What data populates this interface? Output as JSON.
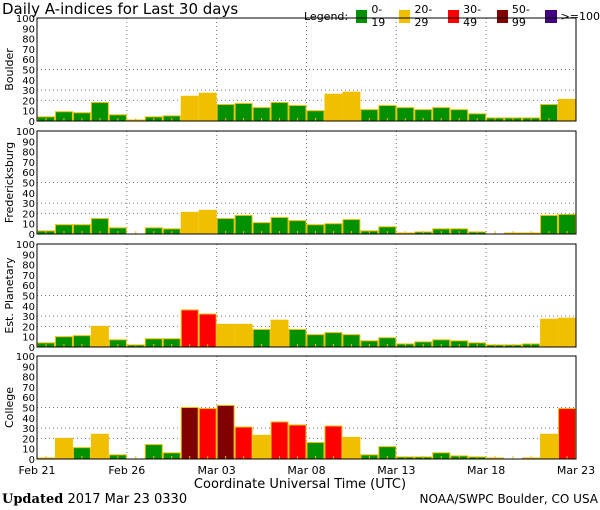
{
  "title": "Daily A-indices for Last 30 days",
  "legend": {
    "label": "Legend:",
    "items": [
      {
        "label": "0-19",
        "color": "#009000"
      },
      {
        "label": "20-29",
        "color": "#f0c000"
      },
      {
        "label": "30-49",
        "color": "#ff0000"
      },
      {
        "label": "50-99",
        "color": "#800000"
      },
      {
        "label": ">=100",
        "color": "#400080"
      }
    ]
  },
  "footer": {
    "updated_label": "Updated",
    "updated_value": "2017 Mar 23 0330",
    "source": "NOAA/SWPC Boulder, CO USA"
  },
  "chart_data": {
    "type": "bar",
    "xlabel": "Coordinate Universal Time (UTC)",
    "x_tick_labels": [
      "Feb 21",
      "Feb 26",
      "Mar 03",
      "Mar 08",
      "Mar 13",
      "Mar 18",
      "Mar 23"
    ],
    "y_tick_labels": [
      "0",
      "10",
      "20",
      "30",
      "40",
      "50",
      "60",
      "70",
      "80",
      "90",
      "100"
    ],
    "ylim": [
      0,
      100
    ],
    "grid": "dotted at 20, 30, 50 and every 5 days",
    "categories": [
      "Feb 21",
      "Feb 22",
      "Feb 23",
      "Feb 24",
      "Feb 25",
      "Feb 26",
      "Feb 27",
      "Feb 28",
      "Mar 01",
      "Mar 02",
      "Mar 03",
      "Mar 04",
      "Mar 05",
      "Mar 06",
      "Mar 07",
      "Mar 08",
      "Mar 09",
      "Mar 10",
      "Mar 11",
      "Mar 12",
      "Mar 13",
      "Mar 14",
      "Mar 15",
      "Mar 16",
      "Mar 17",
      "Mar 18",
      "Mar 19",
      "Mar 20",
      "Mar 21",
      "Mar 22"
    ],
    "series": [
      {
        "name": "Boulder",
        "values": [
          4,
          9,
          8,
          18,
          6,
          1,
          4,
          5,
          24,
          27,
          16,
          17,
          13,
          18,
          15,
          10,
          26,
          28,
          11,
          15,
          13,
          11,
          13,
          11,
          7,
          3,
          3,
          3,
          16,
          21
        ]
      },
      {
        "name": "Fredericksburg",
        "values": [
          3,
          9,
          9,
          15,
          6,
          0,
          6,
          5,
          21,
          23,
          15,
          18,
          11,
          16,
          13,
          9,
          10,
          14,
          3,
          7,
          1,
          2,
          5,
          5,
          2,
          0,
          1,
          1,
          18,
          19
        ]
      },
      {
        "name": "Est. Planetary",
        "values": [
          4,
          10,
          11,
          20,
          7,
          2,
          8,
          8,
          36,
          32,
          22,
          22,
          17,
          26,
          17,
          12,
          14,
          12,
          6,
          9,
          3,
          5,
          7,
          6,
          4,
          2,
          2,
          3,
          27,
          28
        ]
      },
      {
        "name": "College",
        "values": [
          1,
          20,
          11,
          24,
          4,
          0,
          14,
          6,
          50,
          49,
          52,
          31,
          23,
          36,
          33,
          16,
          32,
          21,
          4,
          12,
          2,
          2,
          6,
          3,
          2,
          1,
          0,
          1,
          24,
          49
        ]
      }
    ]
  }
}
